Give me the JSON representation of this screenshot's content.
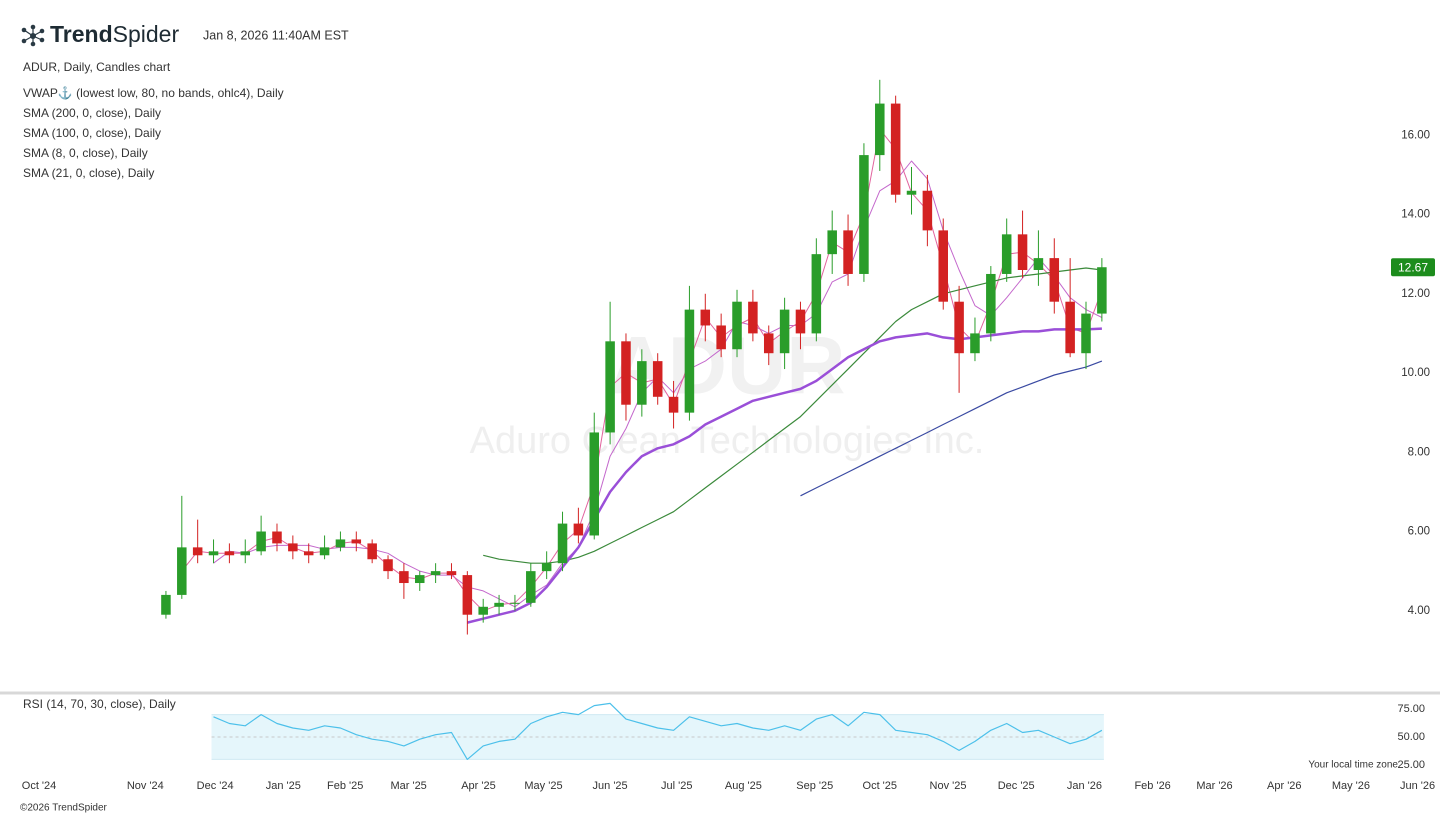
{
  "header": {
    "brand": {
      "bold": "Trend",
      "light": "Spider"
    },
    "timestamp": "Jan 8, 2026 11:40AM EST"
  },
  "chart_data": [
    {
      "type": "candlestick",
      "title": "ADUR, Daily, Candles chart",
      "watermark": "ADUR",
      "watermark_subtitle": "Aduro Clean Technologies Inc.",
      "up_color": "#2a9d2a",
      "down_color": "#d32222",
      "open": [
        3.9,
        4.4,
        5.6,
        5.4,
        5.5,
        5.4,
        5.5,
        6.0,
        5.7,
        5.5,
        5.4,
        5.6,
        5.8,
        5.7,
        5.3,
        5.0,
        4.7,
        4.9,
        5.0,
        4.9,
        3.9,
        4.1,
        4.2,
        4.2,
        5.0,
        5.2,
        6.2,
        5.9,
        8.5,
        10.8,
        9.2,
        10.3,
        9.4,
        9.0,
        11.6,
        11.2,
        10.6,
        11.8,
        11.0,
        10.5,
        11.6,
        11.0,
        13.0,
        13.6,
        12.5,
        15.5,
        16.8,
        14.5,
        14.6,
        13.6,
        11.8,
        10.5,
        11.0,
        12.5,
        13.5,
        12.6,
        12.9,
        11.8,
        10.5,
        11.5
      ],
      "high": [
        4.5,
        6.9,
        6.3,
        5.8,
        5.7,
        5.8,
        6.4,
        6.2,
        5.9,
        5.7,
        5.9,
        6.0,
        6.0,
        5.8,
        5.4,
        5.2,
        5.0,
        5.2,
        5.2,
        5.0,
        4.3,
        4.4,
        4.4,
        5.2,
        5.5,
        6.5,
        6.6,
        9.0,
        11.8,
        11.0,
        10.6,
        10.5,
        9.8,
        12.2,
        12.0,
        11.5,
        12.1,
        12.1,
        11.2,
        11.9,
        11.8,
        13.4,
        14.1,
        14.0,
        15.8,
        17.4,
        17.0,
        15.2,
        15.0,
        13.9,
        12.2,
        11.4,
        12.7,
        13.9,
        14.1,
        13.6,
        13.4,
        12.9,
        11.8,
        12.9
      ],
      "low": [
        3.8,
        4.3,
        5.2,
        5.2,
        5.2,
        5.2,
        5.4,
        5.5,
        5.3,
        5.2,
        5.3,
        5.5,
        5.5,
        5.2,
        4.8,
        4.3,
        4.5,
        4.7,
        4.8,
        3.4,
        3.7,
        3.9,
        4.0,
        4.1,
        4.8,
        5.0,
        5.7,
        5.8,
        8.2,
        8.8,
        8.9,
        9.2,
        8.6,
        8.8,
        10.8,
        10.4,
        10.4,
        10.8,
        10.2,
        10.1,
        10.6,
        10.8,
        12.5,
        12.2,
        12.3,
        15.1,
        14.3,
        14.0,
        13.2,
        11.6,
        9.5,
        10.3,
        10.8,
        12.3,
        12.4,
        12.2,
        11.5,
        10.4,
        10.1,
        11.3
      ],
      "close": [
        4.4,
        5.6,
        5.4,
        5.5,
        5.4,
        5.5,
        6.0,
        5.7,
        5.5,
        5.4,
        5.6,
        5.8,
        5.7,
        5.3,
        5.0,
        4.7,
        4.9,
        5.0,
        4.9,
        3.9,
        4.1,
        4.2,
        4.2,
        5.0,
        5.2,
        6.2,
        5.9,
        8.5,
        10.8,
        9.2,
        10.3,
        9.4,
        9.0,
        11.6,
        11.2,
        10.6,
        11.8,
        11.0,
        10.5,
        11.6,
        11.0,
        13.0,
        13.6,
        12.5,
        15.5,
        16.8,
        14.5,
        14.6,
        13.6,
        11.8,
        10.5,
        11.0,
        12.5,
        13.5,
        12.6,
        12.9,
        11.8,
        10.5,
        11.5,
        12.67
      ],
      "last_price_color": "#1c8c1c",
      "series": [
        {
          "name": "VWAP⚓ (lowest low, 80, no bands, ohlc4), Daily",
          "color": "#9a4fd8",
          "width": 2.5,
          "values": [
            null,
            null,
            null,
            null,
            null,
            null,
            null,
            null,
            null,
            null,
            null,
            null,
            null,
            null,
            null,
            null,
            null,
            null,
            null,
            3.7,
            3.8,
            3.9,
            4.0,
            4.2,
            4.6,
            5.1,
            5.6,
            6.3,
            7.0,
            7.5,
            7.9,
            8.1,
            8.2,
            8.4,
            8.7,
            8.9,
            9.1,
            9.3,
            9.4,
            9.5,
            9.6,
            9.8,
            10.1,
            10.4,
            10.6,
            10.8,
            10.9,
            10.95,
            11.0,
            10.9,
            10.85,
            10.9,
            10.95,
            11.0,
            11.05,
            11.05,
            11.1,
            11.1,
            11.1,
            11.12
          ]
        },
        {
          "name": "SMA (200, 0, close), Daily",
          "color": "#3a4aa2",
          "width": 1.2,
          "values": [
            null,
            null,
            null,
            null,
            null,
            null,
            null,
            null,
            null,
            null,
            null,
            null,
            null,
            null,
            null,
            null,
            null,
            null,
            null,
            null,
            null,
            null,
            null,
            null,
            null,
            null,
            null,
            null,
            null,
            null,
            null,
            null,
            null,
            null,
            null,
            null,
            null,
            null,
            null,
            null,
            6.9,
            7.1,
            7.3,
            7.5,
            7.7,
            7.9,
            8.1,
            8.3,
            8.5,
            8.7,
            8.9,
            9.1,
            9.3,
            9.5,
            9.65,
            9.8,
            9.95,
            10.05,
            10.15,
            10.3
          ]
        },
        {
          "name": "SMA (100, 0, close), Daily",
          "color": "#3b8a3b",
          "width": 1.2,
          "values": [
            null,
            null,
            null,
            null,
            null,
            null,
            null,
            null,
            null,
            null,
            null,
            null,
            null,
            null,
            null,
            null,
            null,
            null,
            null,
            null,
            5.4,
            5.3,
            5.25,
            5.2,
            5.2,
            5.25,
            5.35,
            5.5,
            5.7,
            5.9,
            6.1,
            6.3,
            6.5,
            6.8,
            7.1,
            7.4,
            7.7,
            8.0,
            8.3,
            8.6,
            8.9,
            9.3,
            9.7,
            10.1,
            10.5,
            10.9,
            11.3,
            11.6,
            11.8,
            12.0,
            12.1,
            12.2,
            12.3,
            12.4,
            12.45,
            12.5,
            12.55,
            12.6,
            12.65,
            12.6
          ]
        },
        {
          "name": "SMA (8, 0, close), Daily",
          "color": "#e2649e",
          "width": 1,
          "values": [
            null,
            5.0,
            5.5,
            5.45,
            5.45,
            5.45,
            5.75,
            5.85,
            5.6,
            5.45,
            5.5,
            5.7,
            5.75,
            5.5,
            5.15,
            4.85,
            4.8,
            4.95,
            4.95,
            4.4,
            4.0,
            4.15,
            4.2,
            4.6,
            5.1,
            5.7,
            6.05,
            7.2,
            9.65,
            10.0,
            9.75,
            9.85,
            9.2,
            10.3,
            11.4,
            10.9,
            11.2,
            11.4,
            10.75,
            11.05,
            11.3,
            12.0,
            13.3,
            13.05,
            14.0,
            16.15,
            15.65,
            14.55,
            14.1,
            12.7,
            11.15,
            10.75,
            11.75,
            13.0,
            13.05,
            12.75,
            12.35,
            11.15,
            11.0,
            12.1
          ]
        },
        {
          "name": "SMA (21, 0, close), Daily",
          "color": "#c468cc",
          "width": 1,
          "values": [
            null,
            null,
            null,
            5.2,
            5.5,
            5.45,
            5.6,
            5.65,
            5.65,
            5.65,
            5.55,
            5.6,
            5.6,
            5.55,
            5.45,
            5.2,
            5.0,
            4.9,
            4.9,
            4.6,
            4.5,
            4.3,
            4.1,
            4.4,
            4.65,
            5.2,
            5.6,
            6.5,
            7.9,
            8.6,
            9.5,
            9.9,
            9.5,
            10.1,
            10.3,
            10.6,
            11.3,
            11.2,
            11.0,
            11.2,
            11.2,
            11.5,
            12.3,
            12.5,
            13.65,
            14.6,
            14.85,
            15.35,
            14.9,
            13.6,
            12.6,
            11.7,
            11.45,
            11.9,
            12.4,
            12.9,
            12.45,
            11.9,
            11.6,
            11.4
          ]
        }
      ],
      "ylim": [
        2,
        17.9
      ],
      "yticks": [
        {
          "value": 4,
          "label": "4.00"
        },
        {
          "value": 6,
          "label": "6.00"
        },
        {
          "value": 8,
          "label": "8.00"
        },
        {
          "value": 10,
          "label": "10.00"
        },
        {
          "value": 12,
          "label": "12.00"
        },
        {
          "value": 14,
          "label": "14.00"
        },
        {
          "value": 16,
          "label": "16.00"
        }
      ],
      "xlim": [
        -9.2,
        80
      ],
      "xticks": [
        {
          "value": -8.0,
          "label": "Oct '24"
        },
        {
          "value": -1.3,
          "label": "Nov '24"
        },
        {
          "value": 3.1,
          "label": "Dec '24"
        },
        {
          "value": 7.4,
          "label": "Jan '25"
        },
        {
          "value": 11.3,
          "label": "Feb '25"
        },
        {
          "value": 15.3,
          "label": "Mar '25"
        },
        {
          "value": 19.7,
          "label": "Apr '25"
        },
        {
          "value": 23.8,
          "label": "May '25"
        },
        {
          "value": 28.0,
          "label": "Jun '25"
        },
        {
          "value": 32.2,
          "label": "Jul '25"
        },
        {
          "value": 36.4,
          "label": "Aug '25"
        },
        {
          "value": 40.9,
          "label": "Sep '25"
        },
        {
          "value": 45.0,
          "label": "Oct '25"
        },
        {
          "value": 49.3,
          "label": "Nov '25"
        },
        {
          "value": 53.6,
          "label": "Dec '25"
        },
        {
          "value": 57.9,
          "label": "Jan '26"
        },
        {
          "value": 62.2,
          "label": "Feb '26"
        },
        {
          "value": 66.1,
          "label": "Mar '26"
        },
        {
          "value": 70.5,
          "label": "Apr '26"
        },
        {
          "value": 74.7,
          "label": "May '26"
        },
        {
          "value": 78.9,
          "label": "Jun '26"
        }
      ]
    },
    {
      "type": "line",
      "title": "RSI (14, 70, 30, close), Daily",
      "color": "#4cc0ea",
      "band": [
        30,
        70
      ],
      "band_color": "#e5f6fb",
      "values": [
        null,
        null,
        null,
        68,
        62,
        60,
        70,
        62,
        58,
        56,
        60,
        58,
        52,
        48,
        46,
        42,
        48,
        52,
        54,
        30,
        42,
        46,
        48,
        62,
        68,
        72,
        70,
        78,
        80,
        66,
        62,
        58,
        56,
        68,
        64,
        60,
        62,
        58,
        56,
        60,
        56,
        66,
        70,
        60,
        72,
        70,
        56,
        54,
        52,
        46,
        38,
        46,
        56,
        62,
        54,
        56,
        50,
        44,
        48,
        56
      ],
      "ylim": [
        20.5,
        85.7
      ],
      "yticks": [
        {
          "value": 25,
          "label": "25.00"
        },
        {
          "value": 50,
          "label": "50.00"
        },
        {
          "value": 75,
          "label": "75.00"
        }
      ]
    }
  ],
  "footer": {
    "timezone": "Your local time zone",
    "copyright": "©2026 TrendSpider"
  }
}
